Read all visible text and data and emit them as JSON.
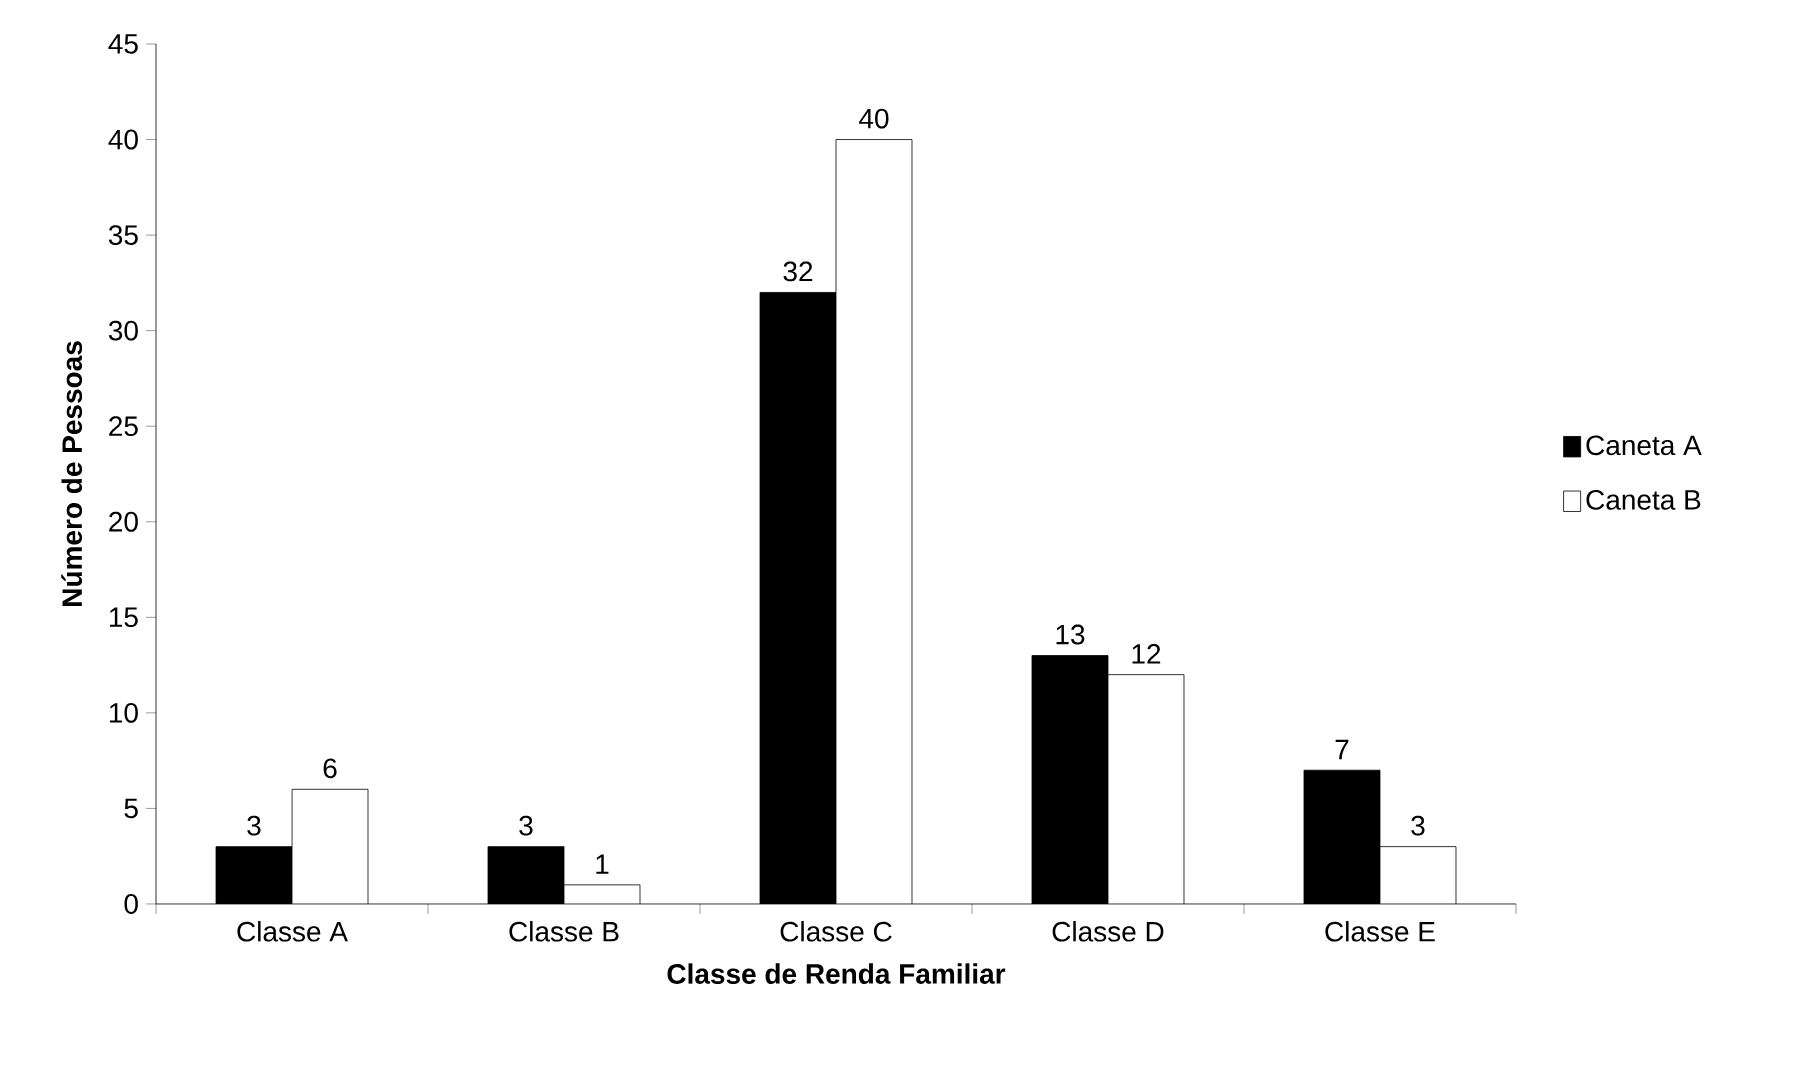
{
  "chart_data": {
    "type": "bar",
    "xlabel": "Classe de Renda Familiar",
    "ylabel": "Número de Pessoas",
    "categories": [
      "Classe A",
      "Classe B",
      "Classe C",
      "Classe D",
      "Classe E"
    ],
    "series": [
      {
        "name": "Caneta A",
        "color": "#000000",
        "values": [
          3,
          3,
          32,
          13,
          7
        ]
      },
      {
        "name": "Caneta B",
        "color": "#ffffff",
        "values": [
          6,
          1,
          40,
          12,
          3
        ]
      }
    ],
    "ylim": [
      0,
      45
    ],
    "yticks": [
      0,
      5,
      10,
      15,
      20,
      25,
      30,
      35,
      40,
      45
    ],
    "data_labels": true,
    "legend": "right"
  }
}
